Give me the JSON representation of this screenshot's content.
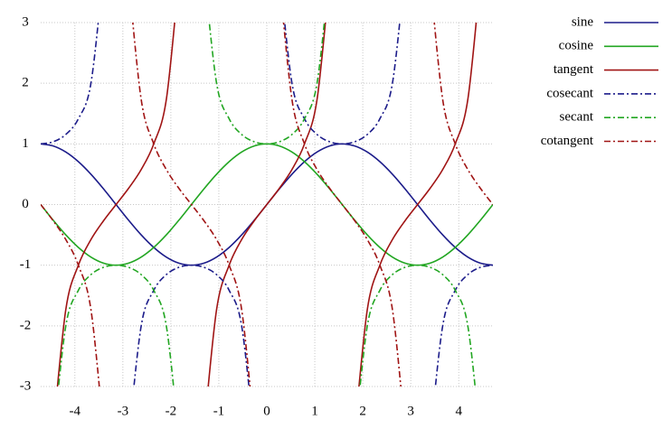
{
  "chart_data": {
    "type": "line",
    "x": [
      -4.712,
      -4.451,
      -4.189,
      -3.927,
      -3.665,
      -3.403,
      -3.142,
      -2.88,
      -2.618,
      -2.356,
      -2.094,
      -1.833,
      -1.571,
      -1.309,
      -1.047,
      -0.785,
      -0.524,
      -0.262,
      0,
      0.262,
      0.524,
      0.785,
      1.047,
      1.309,
      1.571,
      1.833,
      2.094,
      2.356,
      2.618,
      2.88,
      3.142,
      3.403,
      3.665,
      3.927,
      4.189,
      4.451,
      4.712
    ],
    "series": [
      {
        "name": "sine",
        "color": "#1c1c8a",
        "style": "solid",
        "values": [
          1,
          0.966,
          0.866,
          0.707,
          0.5,
          0.259,
          0,
          -0.259,
          -0.5,
          -0.707,
          -0.866,
          -0.966,
          -1,
          -0.966,
          -0.866,
          -0.707,
          -0.5,
          -0.259,
          0,
          0.259,
          0.5,
          0.707,
          0.866,
          0.966,
          1,
          0.966,
          0.866,
          0.707,
          0.5,
          0.259,
          0,
          -0.259,
          -0.5,
          -0.707,
          -0.866,
          -0.966,
          -1
        ]
      },
      {
        "name": "cosine",
        "color": "#22a622",
        "style": "solid",
        "values": [
          0,
          -0.259,
          -0.5,
          -0.707,
          -0.866,
          -0.966,
          -1,
          -0.966,
          -0.866,
          -0.707,
          -0.5,
          -0.259,
          0,
          0.259,
          0.5,
          0.707,
          0.866,
          0.966,
          1,
          0.966,
          0.866,
          0.707,
          0.5,
          0.259,
          0,
          -0.259,
          -0.5,
          -0.707,
          -0.866,
          -0.966,
          -1,
          -0.966,
          -0.866,
          -0.707,
          -0.5,
          -0.259,
          0
        ]
      },
      {
        "name": "tangent",
        "color": "#a01414",
        "style": "solid",
        "values": [
          null,
          -3.732,
          -1.732,
          -1,
          -0.577,
          -0.268,
          0,
          0.268,
          0.577,
          1,
          1.732,
          3.732,
          null,
          -3.732,
          -1.732,
          -1,
          -0.577,
          -0.268,
          0,
          0.268,
          0.577,
          1,
          1.732,
          3.732,
          null,
          -3.732,
          -1.732,
          -1,
          -0.577,
          -0.268,
          0,
          0.268,
          0.577,
          1,
          1.732,
          3.732,
          null
        ]
      },
      {
        "name": "cosecant",
        "color": "#1c1c8a",
        "style": "dashdot",
        "values": [
          1,
          1.035,
          1.155,
          1.414,
          2,
          3.864,
          null,
          -3.864,
          -2,
          -1.414,
          -1.155,
          -1.035,
          -1,
          -1.035,
          -1.155,
          -1.414,
          -2,
          -3.864,
          null,
          3.864,
          2,
          1.414,
          1.155,
          1.035,
          1,
          1.035,
          1.155,
          1.414,
          2,
          3.864,
          null,
          -3.864,
          -2,
          -1.414,
          -1.155,
          -1.035,
          -1
        ]
      },
      {
        "name": "secant",
        "color": "#22a622",
        "style": "dashdot",
        "values": [
          null,
          -3.864,
          -2,
          -1.414,
          -1.155,
          -1.035,
          -1,
          -1.035,
          -1.155,
          -1.414,
          -2,
          -3.864,
          null,
          3.864,
          2,
          1.414,
          1.155,
          1.035,
          1,
          1.035,
          1.155,
          1.414,
          2,
          3.864,
          null,
          -3.864,
          -2,
          -1.414,
          -1.155,
          -1.035,
          -1,
          -1.035,
          -1.155,
          -1.414,
          -2,
          -3.864,
          null
        ]
      },
      {
        "name": "cotangent",
        "color": "#a01414",
        "style": "dashdot",
        "values": [
          0,
          -0.268,
          -0.577,
          -1,
          -1.732,
          -3.732,
          null,
          3.732,
          1.732,
          1,
          0.577,
          0.268,
          0,
          -0.268,
          -0.577,
          -1,
          -1.732,
          -3.732,
          null,
          3.732,
          1.732,
          1,
          0.577,
          0.268,
          0,
          -0.268,
          -0.577,
          -1,
          -1.732,
          -3.732,
          null,
          3.732,
          1.732,
          1,
          0.577,
          0.268,
          0
        ]
      }
    ],
    "xlim": [
      -4.712,
      4.712
    ],
    "xticks": [
      -4,
      -3,
      -2,
      -1,
      0,
      1,
      2,
      3,
      4
    ],
    "ylim": [
      -3,
      3
    ],
    "yticks": [
      -3,
      -2,
      -1,
      0,
      1,
      2,
      3
    ],
    "grid": true,
    "legend": "right"
  }
}
